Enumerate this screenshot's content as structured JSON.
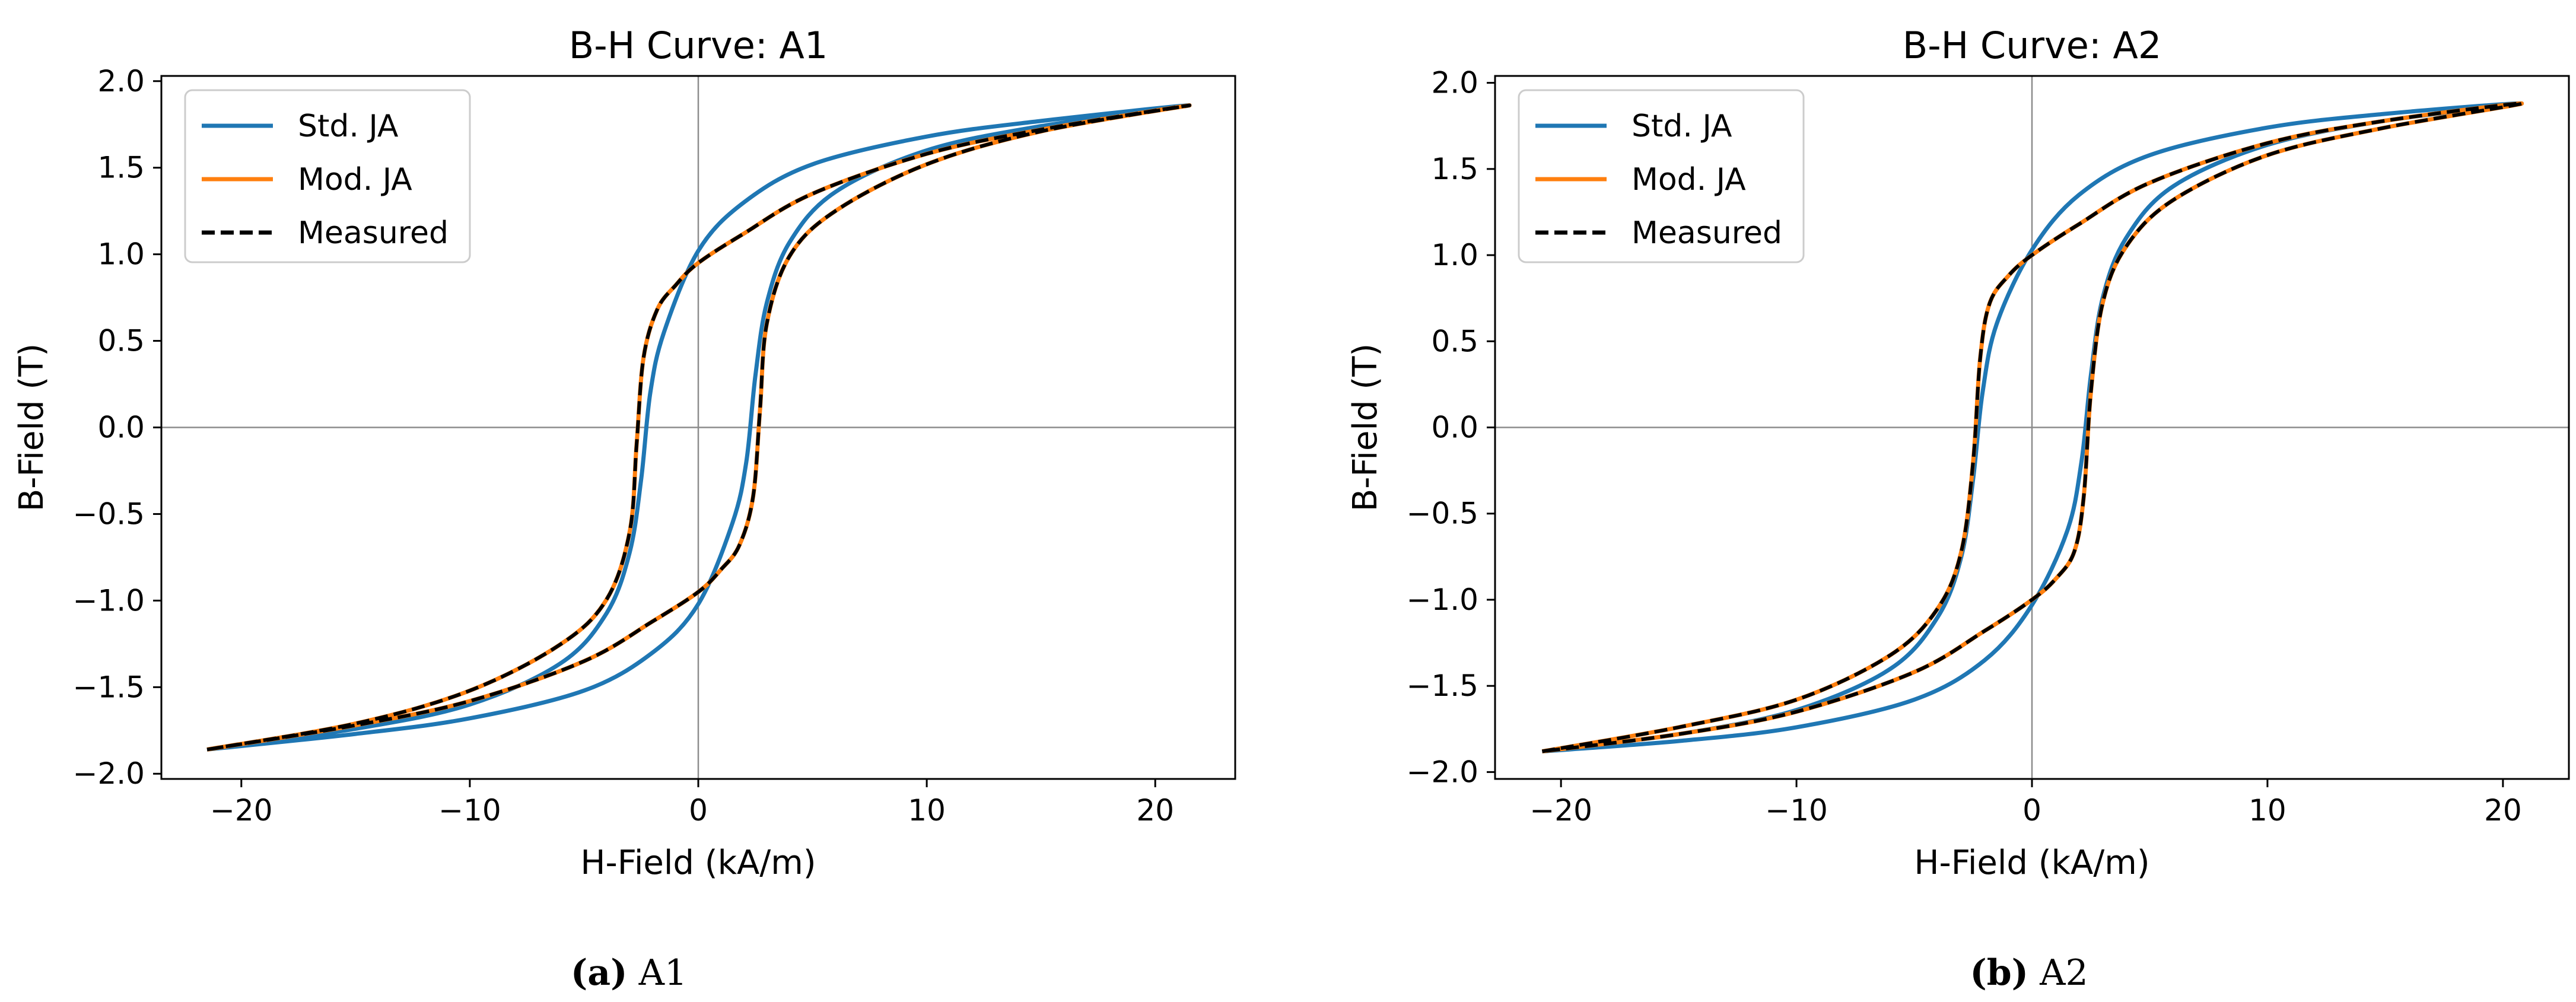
{
  "chart_data": [
    {
      "id": "a1",
      "type": "line",
      "title": "B-H Curve: A1",
      "xlabel": "H-Field (kA/m)",
      "ylabel": "B-Field (T)",
      "xlim": [
        -23.5,
        23.5
      ],
      "ylim": [
        -2.03,
        2.03
      ],
      "xticks": [
        -20,
        -10,
        0,
        10,
        20
      ],
      "xtick_labels": [
        "−20",
        "−10",
        "0",
        "10",
        "20"
      ],
      "yticks": [
        -2.0,
        -1.5,
        -1.0,
        -0.5,
        0.0,
        0.5,
        1.0,
        1.5,
        2.0
      ],
      "ytick_labels": [
        "−2.0",
        "−1.5",
        "−1.0",
        "−0.5",
        "0.0",
        "0.5",
        "1.0",
        "1.5",
        "2.0"
      ],
      "grid": false,
      "zero_lines": true,
      "legend_position": "upper-left",
      "caption_label": "(a)",
      "caption_text": "A1",
      "series": [
        {
          "name": "Std. JA",
          "color": "#1f77b4",
          "style": "solid",
          "x": [
            -21.5,
            -15,
            -10,
            -6,
            -4,
            -3,
            -2.5,
            -2.1,
            -1.5,
            0,
            2,
            5,
            10,
            15,
            21.5,
            15,
            10,
            6,
            4,
            3,
            2.5,
            2.1,
            1.5,
            0,
            -2,
            -5,
            -10,
            -15,
            -21.5
          ],
          "y": [
            -1.86,
            -1.74,
            -1.6,
            -1.36,
            -1.07,
            -0.72,
            -0.3,
            0.2,
            0.55,
            1.02,
            1.3,
            1.52,
            1.68,
            1.77,
            1.86,
            1.74,
            1.6,
            1.36,
            1.07,
            0.72,
            0.3,
            -0.2,
            -0.55,
            -1.02,
            -1.3,
            -1.52,
            -1.68,
            -1.77,
            -1.86
          ]
        },
        {
          "name": "Mod. JA",
          "color": "#ff7f0e",
          "style": "solid",
          "x": [
            -21.5,
            -15,
            -10,
            -6,
            -4,
            -3,
            -2.7,
            -2.4,
            -1.8,
            -1,
            0,
            2,
            5,
            10,
            15,
            21.5,
            15,
            10,
            6,
            4,
            3,
            2.7,
            2.4,
            1.8,
            1,
            0,
            -2,
            -5,
            -10,
            -15,
            -21.5
          ],
          "y": [
            -1.86,
            -1.71,
            -1.52,
            -1.25,
            -0.99,
            -0.6,
            -0.1,
            0.4,
            0.68,
            0.82,
            0.95,
            1.12,
            1.35,
            1.58,
            1.72,
            1.86,
            1.71,
            1.52,
            1.25,
            0.99,
            0.6,
            0.1,
            -0.4,
            -0.68,
            -0.82,
            -0.95,
            -1.12,
            -1.35,
            -1.58,
            -1.72,
            -1.86
          ]
        },
        {
          "name": "Measured",
          "color": "#000000",
          "style": "dashed",
          "x": [
            -21.5,
            -15,
            -10,
            -6,
            -4,
            -3,
            -2.7,
            -2.4,
            -1.8,
            -1,
            0,
            2,
            5,
            10,
            15,
            21.5,
            15,
            10,
            6,
            4,
            3,
            2.7,
            2.4,
            1.8,
            1,
            0,
            -2,
            -5,
            -10,
            -15,
            -21.5
          ],
          "y": [
            -1.86,
            -1.71,
            -1.52,
            -1.25,
            -0.99,
            -0.6,
            -0.1,
            0.4,
            0.68,
            0.82,
            0.95,
            1.12,
            1.35,
            1.58,
            1.72,
            1.86,
            1.71,
            1.52,
            1.25,
            0.99,
            0.6,
            0.1,
            -0.4,
            -0.68,
            -0.82,
            -0.95,
            -1.12,
            -1.35,
            -1.58,
            -1.72,
            -1.86
          ]
        }
      ]
    },
    {
      "id": "a2",
      "type": "line",
      "title": "B-H Curve: A2",
      "xlabel": "H-Field (kA/m)",
      "ylabel": "B-Field (T)",
      "xlim": [
        -22.8,
        22.8
      ],
      "ylim": [
        -2.04,
        2.04
      ],
      "xticks": [
        -20,
        -10,
        0,
        10,
        20
      ],
      "xtick_labels": [
        "−20",
        "−10",
        "0",
        "10",
        "20"
      ],
      "yticks": [
        -2.0,
        -1.5,
        -1.0,
        -0.5,
        0.0,
        0.5,
        1.0,
        1.5,
        2.0
      ],
      "ytick_labels": [
        "−2.0",
        "−1.5",
        "−1.0",
        "−0.5",
        "0.0",
        "0.5",
        "1.0",
        "1.5",
        "2.0"
      ],
      "grid": false,
      "zero_lines": true,
      "legend_position": "upper-left",
      "caption_label": "(b)",
      "caption_text": "A2",
      "series": [
        {
          "name": "Std. JA",
          "color": "#1f77b4",
          "style": "solid",
          "x": [
            -20.8,
            -15,
            -10,
            -6,
            -4,
            -3,
            -2.5,
            -2.1,
            -1.5,
            0,
            2,
            5,
            10,
            15,
            20.8,
            15,
            10,
            6,
            4,
            3,
            2.5,
            2.1,
            1.5,
            0,
            -2,
            -5,
            -10,
            -15,
            -20.8
          ],
          "y": [
            -1.88,
            -1.78,
            -1.64,
            -1.4,
            -1.1,
            -0.75,
            -0.3,
            0.2,
            0.6,
            1.03,
            1.35,
            1.58,
            1.74,
            1.82,
            1.88,
            1.78,
            1.64,
            1.4,
            1.1,
            0.75,
            0.3,
            -0.2,
            -0.6,
            -1.03,
            -1.35,
            -1.58,
            -1.74,
            -1.82,
            -1.88
          ]
        },
        {
          "name": "Mod. JA",
          "color": "#ff7f0e",
          "style": "solid",
          "x": [
            -20.8,
            -15,
            -10,
            -6,
            -4,
            -3,
            -2.5,
            -2.2,
            -1.8,
            -1,
            0,
            2,
            5,
            10,
            15,
            20.8,
            15,
            10,
            6,
            4,
            3,
            2.5,
            2.2,
            1.8,
            1,
            0,
            -2,
            -5,
            -10,
            -15,
            -20.8
          ],
          "y": [
            -1.88,
            -1.74,
            -1.58,
            -1.32,
            -1.05,
            -0.72,
            -0.2,
            0.4,
            0.72,
            0.88,
            1.0,
            1.18,
            1.42,
            1.65,
            1.78,
            1.88,
            1.74,
            1.58,
            1.32,
            1.05,
            0.72,
            0.2,
            -0.4,
            -0.72,
            -0.88,
            -1.0,
            -1.18,
            -1.42,
            -1.65,
            -1.78,
            -1.88
          ]
        },
        {
          "name": "Measured",
          "color": "#000000",
          "style": "dashed",
          "x": [
            -20.8,
            -15,
            -10,
            -6,
            -4,
            -3,
            -2.5,
            -2.2,
            -1.8,
            -1,
            0,
            2,
            5,
            10,
            15,
            20.8,
            15,
            10,
            6,
            4,
            3,
            2.5,
            2.2,
            1.8,
            1,
            0,
            -2,
            -5,
            -10,
            -15,
            -20.8
          ],
          "y": [
            -1.88,
            -1.74,
            -1.58,
            -1.32,
            -1.05,
            -0.72,
            -0.2,
            0.4,
            0.72,
            0.88,
            1.0,
            1.18,
            1.42,
            1.65,
            1.78,
            1.88,
            1.74,
            1.58,
            1.32,
            1.05,
            0.72,
            0.2,
            -0.4,
            -0.72,
            -0.88,
            -1.0,
            -1.18,
            -1.42,
            -1.65,
            -1.78,
            -1.88
          ]
        }
      ]
    }
  ]
}
